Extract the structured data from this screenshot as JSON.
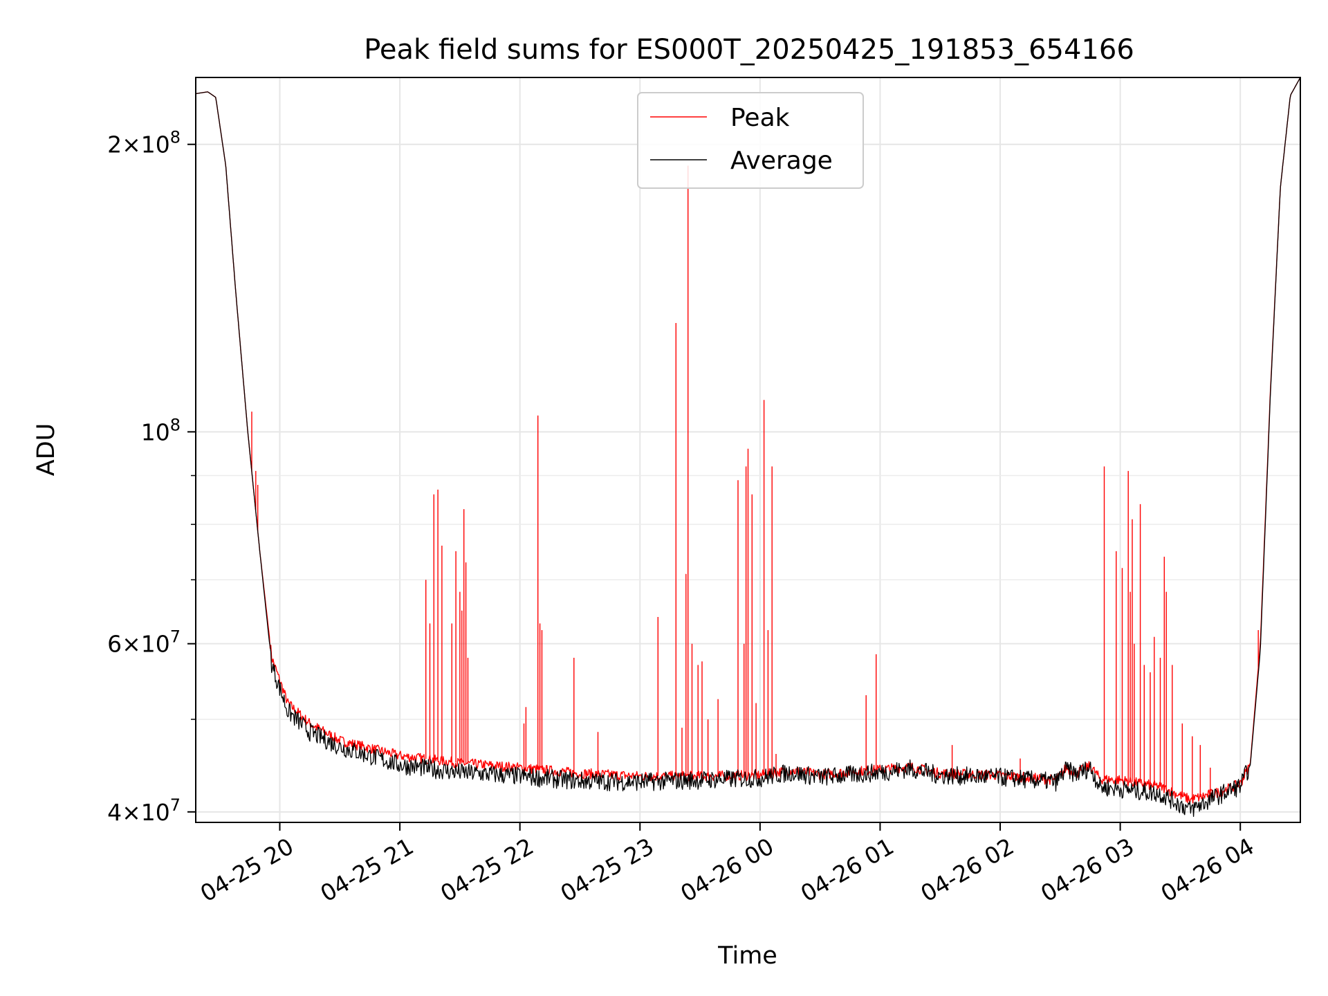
{
  "chart_data": {
    "type": "line",
    "title": "Peak field sums for ES000T_20250425_191853_654166",
    "xlabel": "Time",
    "ylabel": "ADU",
    "yscale": "log",
    "xlim": [
      "2025-04-25 19:18",
      "2025-04-26 04:30"
    ],
    "ylim": [
      39000000,
      235000000
    ],
    "grid": true,
    "legend": {
      "position": "top-center"
    },
    "x_ticks": [
      {
        "value": "2025-04-25 20:00",
        "label": "04-25 20"
      },
      {
        "value": "2025-04-25 21:00",
        "label": "04-25 21"
      },
      {
        "value": "2025-04-25 22:00",
        "label": "04-25 22"
      },
      {
        "value": "2025-04-25 23:00",
        "label": "04-25 23"
      },
      {
        "value": "2025-04-26 00:00",
        "label": "04-26 00"
      },
      {
        "value": "2025-04-26 01:00",
        "label": "04-26 01"
      },
      {
        "value": "2025-04-26 02:00",
        "label": "04-26 02"
      },
      {
        "value": "2025-04-26 03:00",
        "label": "04-26 03"
      },
      {
        "value": "2025-04-26 04:00",
        "label": "04-26 04"
      }
    ],
    "y_ticks": [
      {
        "value": 40000000,
        "mantissa": "4",
        "exp": "7"
      },
      {
        "value": 60000000,
        "mantissa": "6",
        "exp": "7"
      },
      {
        "value": 100000000,
        "mantissa": "",
        "exp": "8"
      },
      {
        "value": 200000000,
        "mantissa": "2",
        "exp": "8"
      }
    ],
    "y_minor_ticks": [
      50000000,
      70000000,
      80000000,
      90000000
    ],
    "series": [
      {
        "name": "Peak",
        "color": "#ff0000",
        "baseline": [
          [
            "2025-04-25 19:18",
            226000000
          ],
          [
            "2025-04-25 19:24",
            227000000
          ],
          [
            "2025-04-25 19:28",
            224000000
          ],
          [
            "2025-04-25 19:33",
            190000000
          ],
          [
            "2025-04-25 19:38",
            140000000
          ],
          [
            "2025-04-25 19:44",
            100000000
          ],
          [
            "2025-04-25 19:50",
            75000000
          ],
          [
            "2025-04-25 19:56",
            58000000
          ],
          [
            "2025-04-25 20:04",
            52000000
          ],
          [
            "2025-04-25 20:15",
            49500000
          ],
          [
            "2025-04-25 20:30",
            47500000
          ],
          [
            "2025-04-25 21:00",
            45800000
          ],
          [
            "2025-04-25 21:30",
            45000000
          ],
          [
            "2025-04-25 22:00",
            44500000
          ],
          [
            "2025-04-25 22:30",
            43900000
          ],
          [
            "2025-04-25 23:00",
            43600000
          ],
          [
            "2025-04-25 23:30",
            43600000
          ],
          [
            "2025-04-26 00:00",
            43700000
          ],
          [
            "2025-04-26 00:15",
            44200000
          ],
          [
            "2025-04-26 00:30",
            43800000
          ],
          [
            "2025-04-26 01:00",
            44300000
          ],
          [
            "2025-04-26 01:15",
            44600000
          ],
          [
            "2025-04-26 01:30",
            43900000
          ],
          [
            "2025-04-26 02:00",
            43700000
          ],
          [
            "2025-04-26 02:28",
            43200000
          ],
          [
            "2025-04-26 02:33",
            44500000
          ],
          [
            "2025-04-26 02:38",
            43900000
          ],
          [
            "2025-04-26 02:45",
            44700000
          ],
          [
            "2025-04-26 02:50",
            43300000
          ],
          [
            "2025-04-26 03:00",
            43200000
          ],
          [
            "2025-04-26 03:20",
            42500000
          ],
          [
            "2025-04-26 03:35",
            41200000
          ],
          [
            "2025-04-26 03:50",
            42000000
          ],
          [
            "2025-04-26 04:00",
            42800000
          ],
          [
            "2025-04-26 04:05",
            45000000
          ],
          [
            "2025-04-26 04:10",
            60000000
          ],
          [
            "2025-04-26 04:15",
            110000000
          ],
          [
            "2025-04-26 04:20",
            180000000
          ],
          [
            "2025-04-26 04:25",
            225000000
          ],
          [
            "2025-04-26 04:30",
            235000000
          ]
        ],
        "spikes": [
          [
            "2025-04-25 19:46",
            105000000
          ],
          [
            "2025-04-25 19:48",
            91000000
          ],
          [
            "2025-04-25 19:49",
            88000000
          ],
          [
            "2025-04-25 21:13",
            70000000
          ],
          [
            "2025-04-25 21:15",
            63000000
          ],
          [
            "2025-04-25 21:17",
            86000000
          ],
          [
            "2025-04-25 21:19",
            87000000
          ],
          [
            "2025-04-25 21:21",
            76000000
          ],
          [
            "2025-04-25 21:26",
            63000000
          ],
          [
            "2025-04-25 21:28",
            75000000
          ],
          [
            "2025-04-25 21:30",
            68000000
          ],
          [
            "2025-04-25 21:31",
            65000000
          ],
          [
            "2025-04-25 21:32",
            83000000
          ],
          [
            "2025-04-25 21:33",
            73000000
          ],
          [
            "2025-04-25 21:34",
            58000000
          ],
          [
            "2025-04-25 22:02",
            49500000
          ],
          [
            "2025-04-25 22:03",
            51500000
          ],
          [
            "2025-04-25 22:09",
            104000000
          ],
          [
            "2025-04-25 22:10",
            63000000
          ],
          [
            "2025-04-25 22:11",
            62000000
          ],
          [
            "2025-04-25 22:27",
            58000000
          ],
          [
            "2025-04-25 22:39",
            48500000
          ],
          [
            "2025-04-25 23:09",
            64000000
          ],
          [
            "2025-04-25 23:18",
            130000000
          ],
          [
            "2025-04-25 23:21",
            49000000
          ],
          [
            "2025-04-25 23:23",
            71000000
          ],
          [
            "2025-04-25 23:24",
            190000000
          ],
          [
            "2025-04-25 23:26",
            60000000
          ],
          [
            "2025-04-25 23:29",
            57000000
          ],
          [
            "2025-04-25 23:31",
            57500000
          ],
          [
            "2025-04-25 23:34",
            50000000
          ],
          [
            "2025-04-25 23:39",
            52500000
          ],
          [
            "2025-04-25 23:49",
            89000000
          ],
          [
            "2025-04-25 23:52",
            60000000
          ],
          [
            "2025-04-25 23:53",
            92000000
          ],
          [
            "2025-04-25 23:54",
            96000000
          ],
          [
            "2025-04-25 23:56",
            86000000
          ],
          [
            "2025-04-25 23:58",
            52000000
          ],
          [
            "2025-04-26 00:02",
            108000000
          ],
          [
            "2025-04-26 00:04",
            62000000
          ],
          [
            "2025-04-26 00:06",
            92000000
          ],
          [
            "2025-04-26 00:08",
            46000000
          ],
          [
            "2025-04-26 00:53",
            53000000
          ],
          [
            "2025-04-26 00:58",
            58500000
          ],
          [
            "2025-04-26 01:36",
            47000000
          ],
          [
            "2025-04-26 02:10",
            45500000
          ],
          [
            "2025-04-26 02:52",
            92000000
          ],
          [
            "2025-04-26 02:58",
            75000000
          ],
          [
            "2025-04-26 03:01",
            72000000
          ],
          [
            "2025-04-26 03:04",
            91000000
          ],
          [
            "2025-04-26 03:05",
            68000000
          ],
          [
            "2025-04-26 03:06",
            81000000
          ],
          [
            "2025-04-26 03:07",
            60000000
          ],
          [
            "2025-04-26 03:10",
            84000000
          ],
          [
            "2025-04-26 03:12",
            57000000
          ],
          [
            "2025-04-26 03:15",
            56000000
          ],
          [
            "2025-04-26 03:17",
            61000000
          ],
          [
            "2025-04-26 03:20",
            58000000
          ],
          [
            "2025-04-26 03:22",
            74000000
          ],
          [
            "2025-04-26 03:23",
            68000000
          ],
          [
            "2025-04-26 03:26",
            57000000
          ],
          [
            "2025-04-26 03:31",
            49500000
          ],
          [
            "2025-04-26 03:36",
            48000000
          ],
          [
            "2025-04-26 03:40",
            47000000
          ],
          [
            "2025-04-26 03:45",
            44500000
          ],
          [
            "2025-04-26 04:09",
            62000000
          ]
        ]
      },
      {
        "name": "Average",
        "color": "#000000",
        "baseline": [
          [
            "2025-04-25 19:18",
            226000000
          ],
          [
            "2025-04-25 19:24",
            227000000
          ],
          [
            "2025-04-25 19:28",
            224000000
          ],
          [
            "2025-04-25 19:33",
            190000000
          ],
          [
            "2025-04-25 19:38",
            140000000
          ],
          [
            "2025-04-25 19:44",
            100000000
          ],
          [
            "2025-04-25 19:50",
            75000000
          ],
          [
            "2025-04-25 19:56",
            57000000
          ],
          [
            "2025-04-25 20:04",
            51000000
          ],
          [
            "2025-04-25 20:15",
            48500000
          ],
          [
            "2025-04-25 20:30",
            46800000
          ],
          [
            "2025-04-25 21:00",
            44800000
          ],
          [
            "2025-04-25 21:30",
            44000000
          ],
          [
            "2025-04-25 22:00",
            43600000
          ],
          [
            "2025-04-25 22:30",
            43100000
          ],
          [
            "2025-04-25 23:00",
            43000000
          ],
          [
            "2025-04-25 23:30",
            43200000
          ],
          [
            "2025-04-26 00:00",
            43400000
          ],
          [
            "2025-04-26 00:15",
            44000000
          ],
          [
            "2025-04-26 00:30",
            43500000
          ],
          [
            "2025-04-26 01:00",
            44000000
          ],
          [
            "2025-04-26 01:15",
            44400000
          ],
          [
            "2025-04-26 01:30",
            43700000
          ],
          [
            "2025-04-26 02:00",
            43500000
          ],
          [
            "2025-04-26 02:28",
            43000000
          ],
          [
            "2025-04-26 02:33",
            44300000
          ],
          [
            "2025-04-26 02:38",
            43800000
          ],
          [
            "2025-04-26 02:45",
            44500000
          ],
          [
            "2025-04-26 02:50",
            42500000
          ],
          [
            "2025-04-26 03:00",
            42300000
          ],
          [
            "2025-04-26 03:20",
            41800000
          ],
          [
            "2025-04-26 03:35",
            40200000
          ],
          [
            "2025-04-26 03:50",
            41700000
          ],
          [
            "2025-04-26 04:00",
            42600000
          ],
          [
            "2025-04-26 04:05",
            44800000
          ],
          [
            "2025-04-26 04:10",
            59000000
          ],
          [
            "2025-04-26 04:15",
            109000000
          ],
          [
            "2025-04-26 04:20",
            180000000
          ],
          [
            "2025-04-26 04:25",
            225000000
          ],
          [
            "2025-04-26 04:30",
            235000000
          ]
        ]
      }
    ]
  }
}
